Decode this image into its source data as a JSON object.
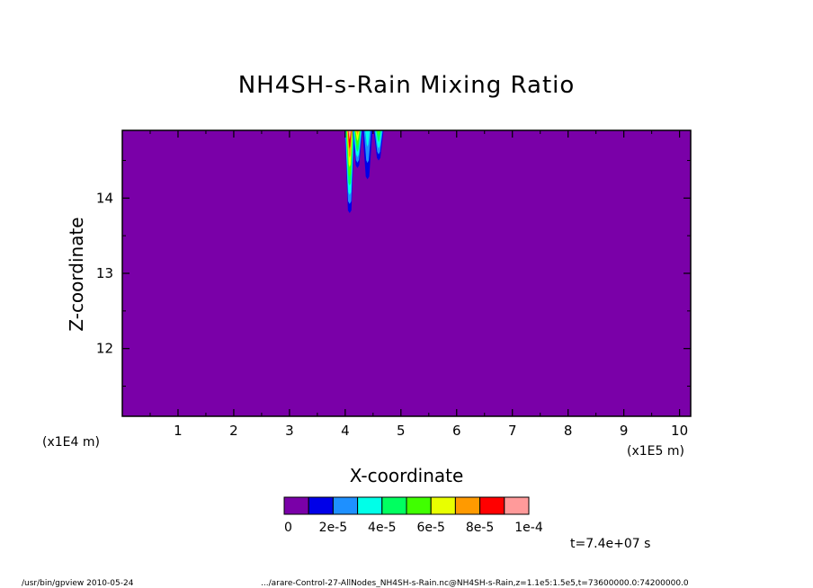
{
  "chart_data": {
    "type": "heatmap",
    "title": "NH4SH-s-Rain Mixing Ratio",
    "xlabel": "X-coordinate",
    "ylabel": "Z-coordinate",
    "x_unit": "(x1E5 m)",
    "y_unit": "(x1E4 m)",
    "xlim": [
      0,
      10.2
    ],
    "ylim": [
      11.1,
      14.9
    ],
    "x_ticks": [
      "1",
      "2",
      "3",
      "4",
      "5",
      "6",
      "7",
      "8",
      "9",
      "10"
    ],
    "y_ticks": [
      "12",
      "13",
      "14"
    ],
    "x_tick_values": [
      1,
      2,
      3,
      4,
      5,
      6,
      7,
      8,
      9,
      10
    ],
    "y_tick_values": [
      12,
      13,
      14
    ],
    "colorbar": {
      "colors": [
        "#7a00a8",
        "#0000e8",
        "#1e90ff",
        "#00ffe8",
        "#00ff60",
        "#40ff00",
        "#e8ff00",
        "#ff9a00",
        "#ff0000",
        "#ff9a9a"
      ],
      "labels": [
        "0",
        "2e-5",
        "4e-5",
        "6e-5",
        "8e-5",
        "1e-4"
      ],
      "min": 0,
      "max": 0.0001
    },
    "background_value": 0,
    "plumes": [
      {
        "x": 4.08,
        "z_bottom": 13.8,
        "peak": 9e-05
      },
      {
        "x": 4.22,
        "z_bottom": 14.4,
        "peak": 7e-05
      },
      {
        "x": 4.4,
        "z_bottom": 14.25,
        "peak": 3e-05
      },
      {
        "x": 4.6,
        "z_bottom": 14.5,
        "peak": 5e-05
      }
    ]
  },
  "time_label": "t=7.4e+07 s",
  "footer": {
    "left": "/usr/bin/gpview   2010-05-24",
    "right": ".../arare-Control-27-AllNodes_NH4SH-s-Rain.nc@NH4SH-s-Rain,z=1.1e5:1.5e5,t=73600000.0:74200000.0"
  }
}
